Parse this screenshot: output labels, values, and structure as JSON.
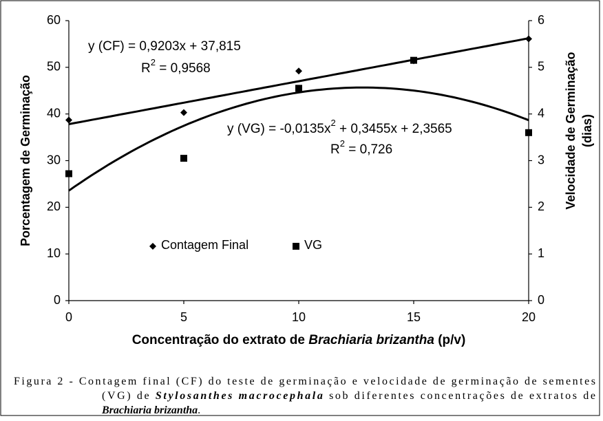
{
  "chart_data": {
    "type": "scatter",
    "x_label": [
      "Concentração do extrato de ",
      "Brachiaria brizantha",
      " (p/v)"
    ],
    "y_label": "Porcentagem de Germinação",
    "y2_label": [
      "Velocidade de Germinação",
      "(dias)"
    ],
    "x": [
      0,
      5,
      10,
      15,
      20
    ],
    "series": [
      {
        "name": "Contagem Final",
        "color": "#000000",
        "marker": "diamond",
        "values": [
          38.7,
          40.3,
          49.2,
          51.4,
          56.1
        ],
        "trend": {
          "type": "linear",
          "coefficients": [
            0.9203,
            37.815
          ]
        }
      },
      {
        "name": "VG",
        "color": "#000000",
        "marker": "square",
        "axis": "y2",
        "values": [
          2.72,
          3.05,
          4.55,
          5.15,
          3.6
        ],
        "trend": {
          "type": "quadratic",
          "coefficients": [
            -0.0135,
            0.3455,
            2.3565
          ]
        }
      }
    ],
    "annotations": [
      {
        "text": "y (CF) = 0,9203x + 37,815"
      },
      {
        "text": "R",
        "sup": "2",
        "rest": " = 0,9568"
      },
      {
        "text": "y (VG) = -0,0135x",
        "sup": "2",
        "rest": " + 0,3455x + 2,3565"
      },
      {
        "text": "R",
        "sup": "2",
        "rest": " = 0,726"
      }
    ],
    "xlim": [
      0,
      20
    ],
    "xticks": [
      0,
      5,
      10,
      15,
      20
    ],
    "ylim": [
      0,
      60
    ],
    "yticks": [
      0,
      10,
      20,
      30,
      40,
      50,
      60
    ],
    "y2lim": [
      0,
      6
    ],
    "y2ticks": [
      0,
      1,
      2,
      3,
      4,
      5,
      6
    ],
    "grid": false
  },
  "caption": [
    [
      {
        "text": "Figura 2 - Contagem final (CF) do teste de germinação e velocidade de germinação de sementes"
      }
    ],
    [
      {
        "text": "(VG) de "
      },
      {
        "text": "Stylosanthes macrocephala",
        "emphasis": true
      },
      {
        "text": " sob diferentes concentrações de extratos de"
      }
    ],
    [
      {
        "text": "Brachiaria brizantha",
        "emphasis": true
      },
      {
        "text": "."
      }
    ]
  ]
}
